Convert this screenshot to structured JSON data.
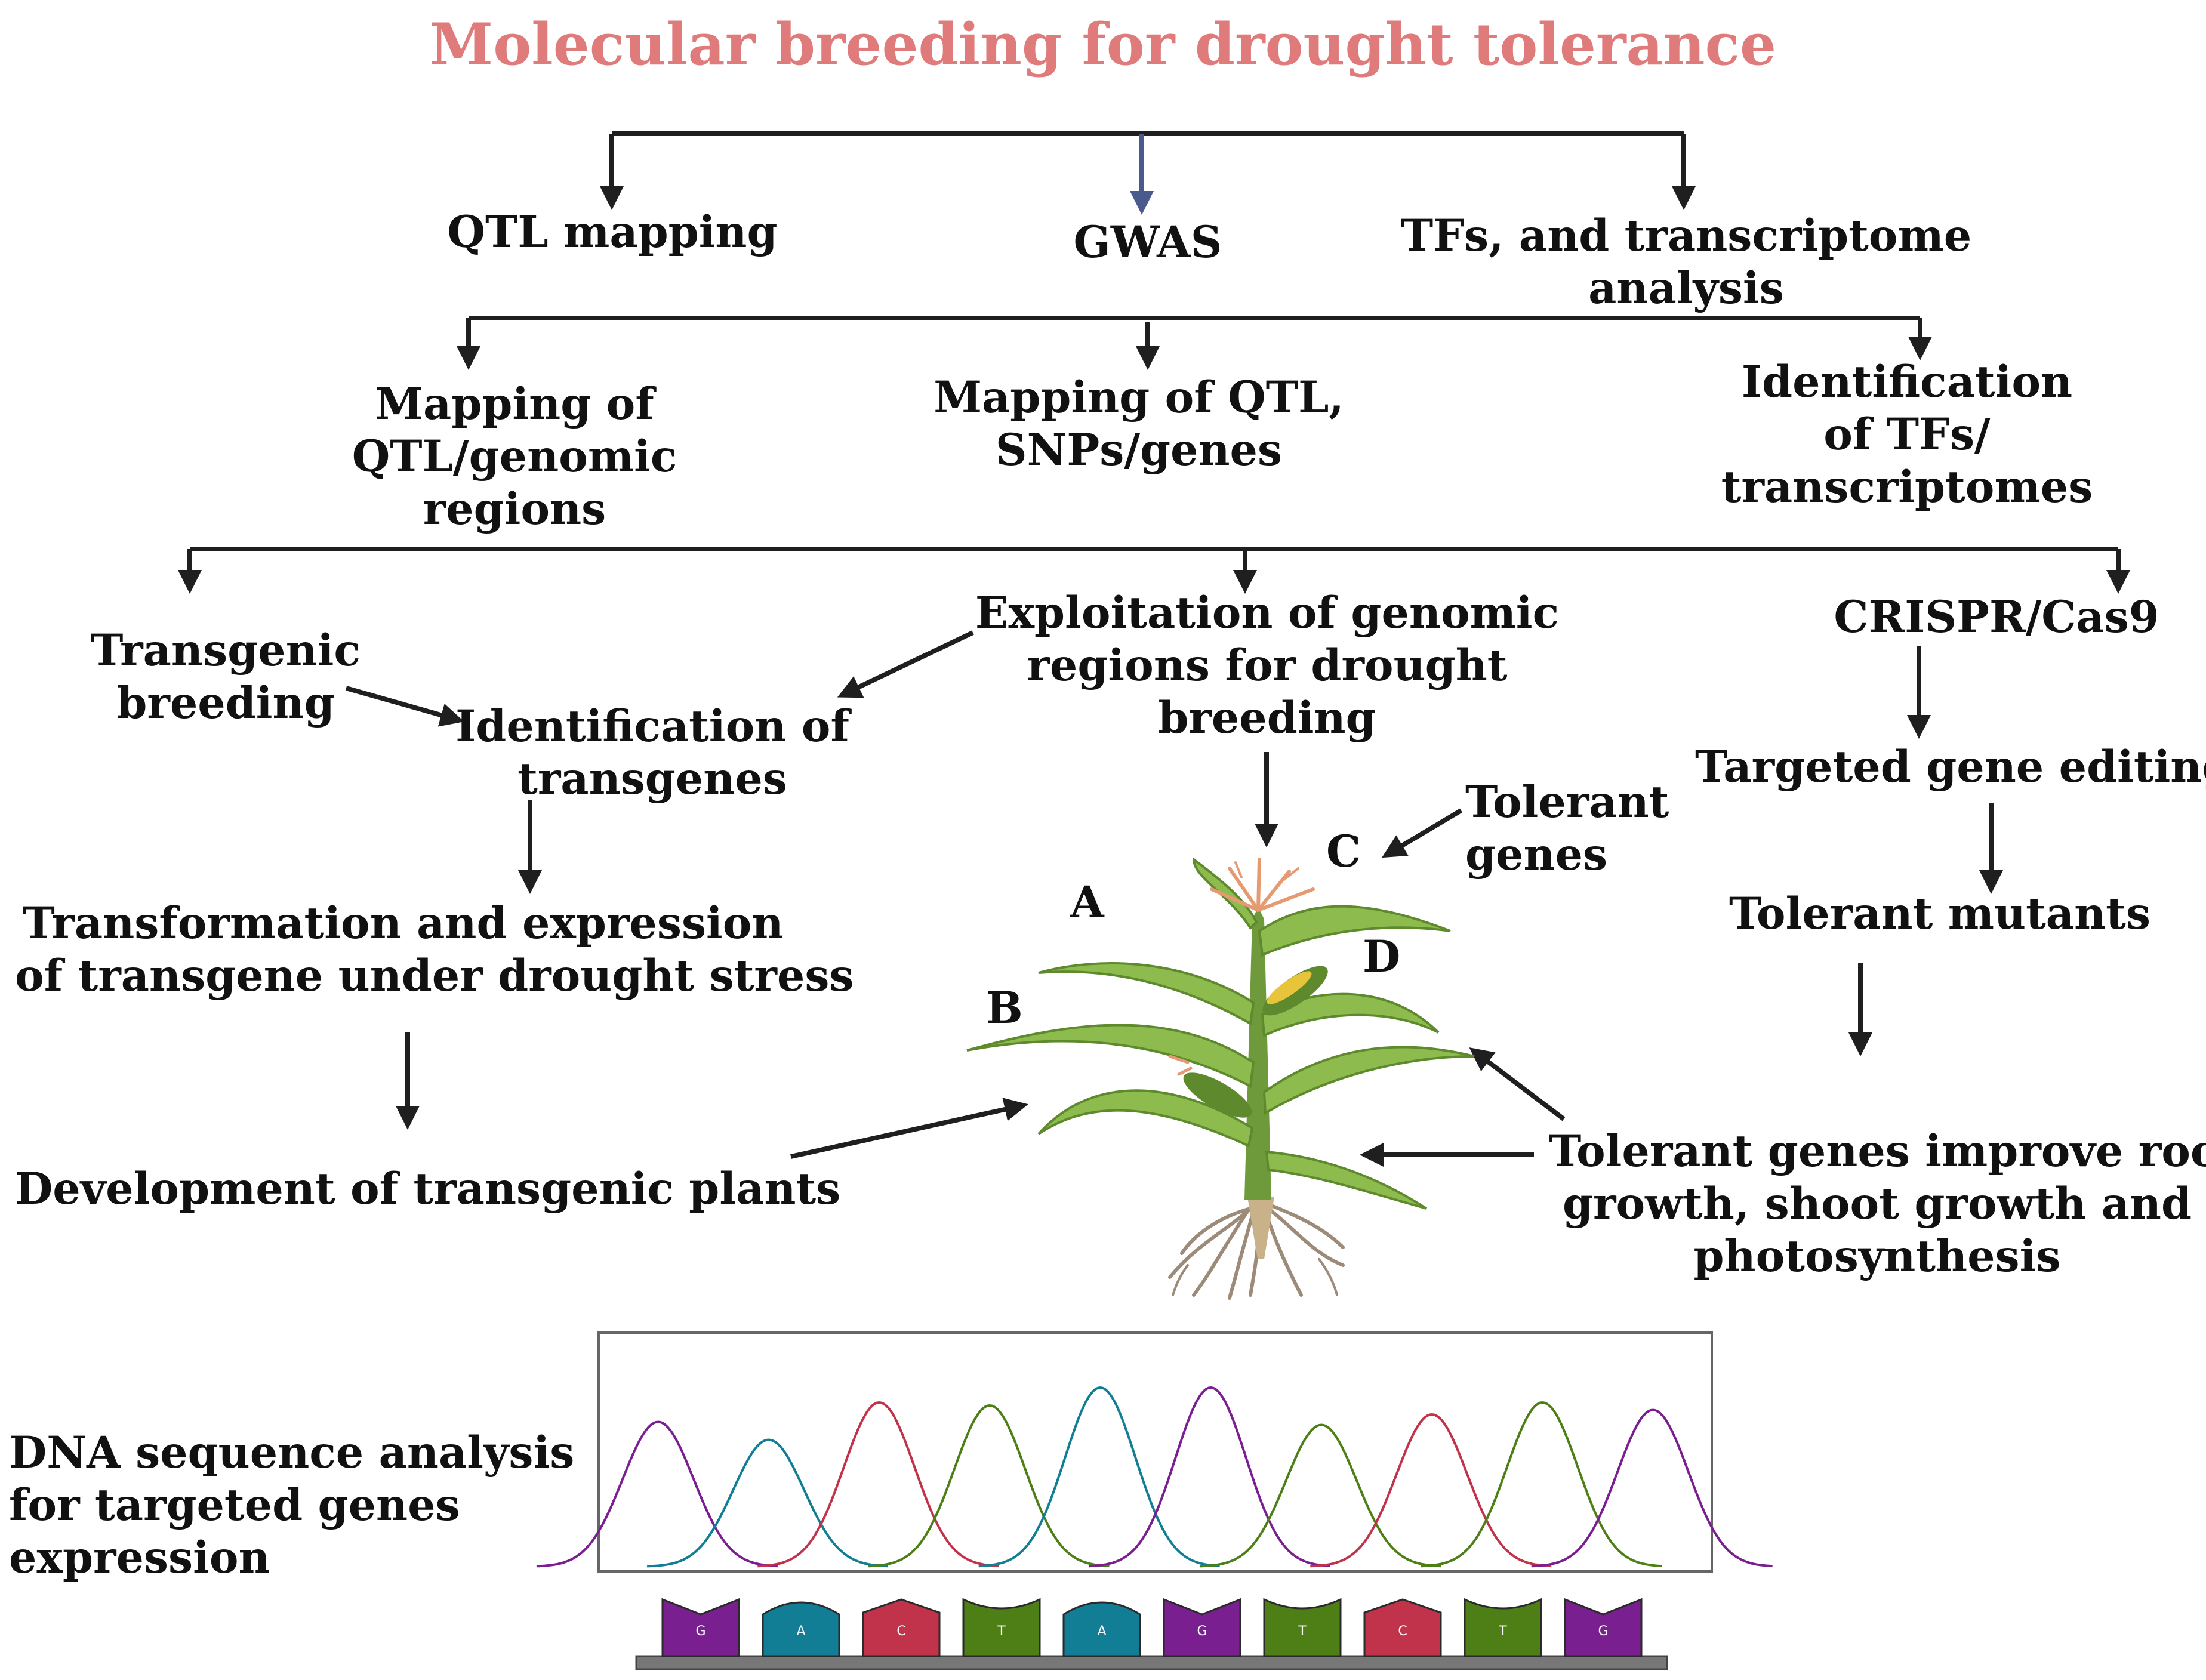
{
  "title": "Molecular breeding for drought tolerance",
  "colors": {
    "title": "#e07b7b",
    "arrow": "#1f1f1f",
    "arrow_accent": "#4a5a8c",
    "stem": "#6f9a3c",
    "leaf": "#8dbb4e",
    "leaf_dark": "#5e8a2d",
    "tassel": "#e59a72",
    "root": "#9b8b78",
    "A": "#7a1f8f",
    "C": "#127e96",
    "G": "#c0334a",
    "T": "#4e7e16",
    "track": "#777777",
    "frame": "#666666"
  },
  "level1": {
    "qtl": "QTL mapping",
    "gwas": "GWAS",
    "tfs_line1": "TFs, and transcriptome",
    "tfs_line2": "analysis"
  },
  "level2": {
    "left": [
      "Mapping of",
      "QTL/genomic",
      "regions"
    ],
    "middle": [
      "Mapping of QTL,",
      "SNPs/genes"
    ],
    "right": [
      "Identification",
      "of TFs/",
      "transcriptomes"
    ]
  },
  "left_branch": {
    "transgenic_breeding": [
      "Transgenic",
      "breeding"
    ],
    "identification": [
      "Identification of",
      "transgenes"
    ],
    "transformation": [
      "Transformation and expression",
      "of transgene under drought stress"
    ],
    "development": "Development of transgenic plants"
  },
  "middle_branch": {
    "exploitation": [
      "Exploitation of genomic",
      "regions for drought",
      "breeding"
    ],
    "tolerant_genes": [
      "Tolerant",
      "genes"
    ],
    "improve": [
      "Tolerant genes improve root",
      "growth, shoot growth and",
      "photosynthesis"
    ]
  },
  "right_branch": {
    "crispr": "CRISPR/Cas9",
    "editing": "Targeted gene editing",
    "mutants": "Tolerant mutants"
  },
  "plant_labels": {
    "A": "A",
    "B": "B",
    "C": "C",
    "D": "D"
  },
  "dna": {
    "label": [
      "DNA sequence analysis",
      "for targeted genes",
      "expression"
    ],
    "peak_colors": [
      "A",
      "C",
      "G",
      "T",
      "C",
      "A",
      "T",
      "G",
      "T",
      "A"
    ],
    "peak_heights": [
      0.97,
      0.85,
      1.1,
      1.08,
      1.2,
      1.2,
      0.95,
      1.02,
      1.1,
      1.05
    ],
    "bases": [
      "G",
      "A",
      "C",
      "T",
      "A",
      "G",
      "T",
      "C",
      "T",
      "G"
    ]
  }
}
